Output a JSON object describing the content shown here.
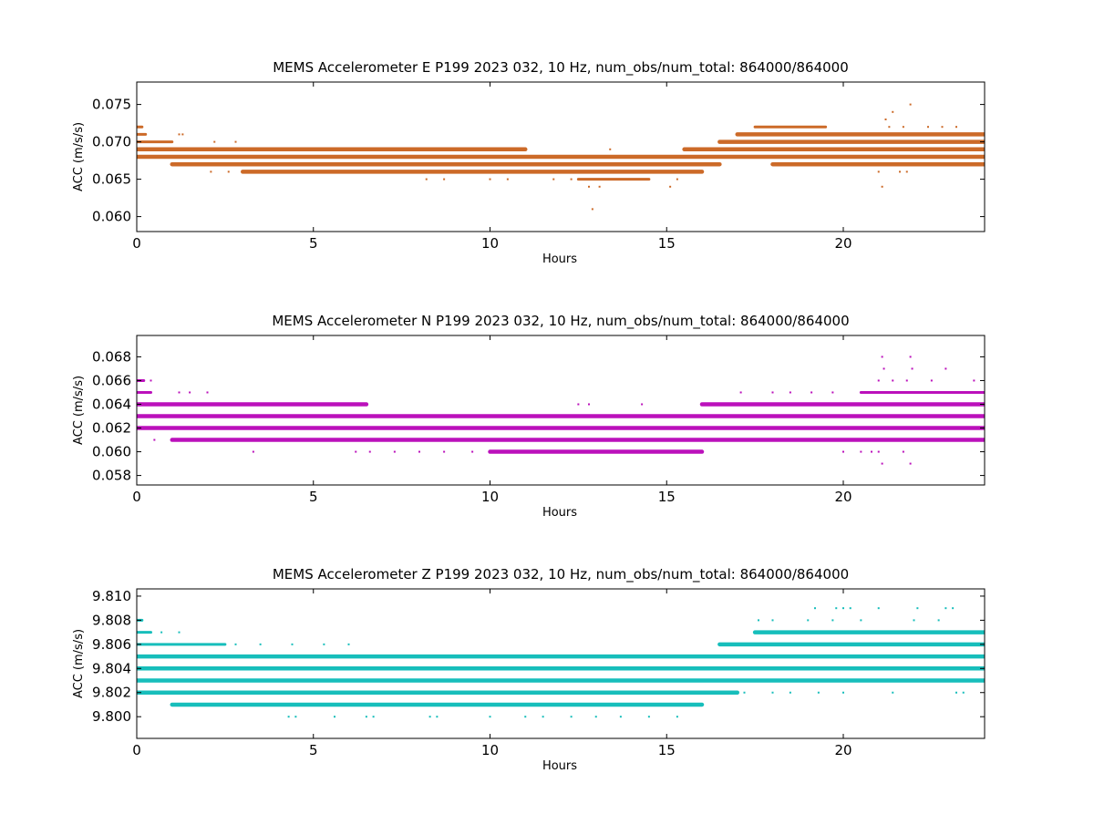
{
  "figure": {
    "background": "#ffffff"
  },
  "chart_data": [
    {
      "type": "scatter",
      "title": "MEMS Accelerometer E P199 2023 032, 10 Hz, num_obs/num_total: 864000/864000",
      "xlabel": "Hours",
      "ylabel": "ACC (m/s/s)",
      "xlim": [
        0,
        24
      ],
      "ylim": [
        0.058,
        0.078
      ],
      "xticks": [
        0,
        5,
        10,
        15,
        20
      ],
      "xtick_labels": [
        "0",
        "5",
        "10",
        "15",
        "20"
      ],
      "yticks": [
        0.06,
        0.065,
        0.07,
        0.075
      ],
      "ytick_labels": [
        "0.060",
        "0.065",
        "0.070",
        "0.075"
      ],
      "grid": false,
      "color": "#cc6a28",
      "bands": [
        {
          "y": 0.072,
          "segments": [
            [
              0.0,
              0.15
            ],
            [
              17.5,
              19.5
            ]
          ]
        },
        {
          "y": 0.071,
          "segments": [
            [
              0.0,
              0.25
            ],
            [
              17.0,
              24.0
            ]
          ]
        },
        {
          "y": 0.07,
          "segments": [
            [
              0.0,
              1.0
            ],
            [
              16.5,
              24.0
            ]
          ]
        },
        {
          "y": 0.069,
          "segments": [
            [
              0.0,
              11.0
            ],
            [
              15.5,
              24.0
            ]
          ]
        },
        {
          "y": 0.068,
          "segments": [
            [
              0.0,
              24.0
            ]
          ]
        },
        {
          "y": 0.067,
          "segments": [
            [
              1.0,
              16.5
            ],
            [
              18.0,
              24.0
            ]
          ]
        },
        {
          "y": 0.066,
          "segments": [
            [
              3.0,
              16.0
            ]
          ]
        },
        {
          "y": 0.065,
          "segments": [
            [
              12.5,
              14.5
            ]
          ]
        }
      ],
      "points": [
        {
          "x": 1.2,
          "y": 0.071
        },
        {
          "x": 1.3,
          "y": 0.071
        },
        {
          "x": 2.2,
          "y": 0.07
        },
        {
          "x": 2.8,
          "y": 0.07
        },
        {
          "x": 2.1,
          "y": 0.066
        },
        {
          "x": 2.6,
          "y": 0.066
        },
        {
          "x": 8.2,
          "y": 0.065
        },
        {
          "x": 8.7,
          "y": 0.065
        },
        {
          "x": 10.0,
          "y": 0.065
        },
        {
          "x": 10.5,
          "y": 0.065
        },
        {
          "x": 11.8,
          "y": 0.065
        },
        {
          "x": 12.3,
          "y": 0.065
        },
        {
          "x": 12.8,
          "y": 0.064
        },
        {
          "x": 12.9,
          "y": 0.061
        },
        {
          "x": 13.1,
          "y": 0.064
        },
        {
          "x": 15.1,
          "y": 0.064
        },
        {
          "x": 13.4,
          "y": 0.069
        },
        {
          "x": 15.3,
          "y": 0.065
        },
        {
          "x": 19.0,
          "y": 0.067
        },
        {
          "x": 20.8,
          "y": 0.067
        },
        {
          "x": 21.0,
          "y": 0.066
        },
        {
          "x": 21.1,
          "y": 0.064
        },
        {
          "x": 21.2,
          "y": 0.073
        },
        {
          "x": 21.4,
          "y": 0.074
        },
        {
          "x": 21.6,
          "y": 0.066
        },
        {
          "x": 21.8,
          "y": 0.066
        },
        {
          "x": 21.9,
          "y": 0.075
        },
        {
          "x": 22.4,
          "y": 0.072
        },
        {
          "x": 22.8,
          "y": 0.072
        },
        {
          "x": 23.2,
          "y": 0.072
        },
        {
          "x": 21.3,
          "y": 0.072
        },
        {
          "x": 21.7,
          "y": 0.072
        }
      ]
    },
    {
      "type": "scatter",
      "title": "MEMS Accelerometer N P199 2023 032, 10 Hz, num_obs/num_total: 864000/864000",
      "xlabel": "Hours",
      "ylabel": "ACC (m/s/s)",
      "xlim": [
        0,
        24
      ],
      "ylim": [
        0.0572,
        0.0698
      ],
      "xticks": [
        0,
        5,
        10,
        15,
        20
      ],
      "xtick_labels": [
        "0",
        "5",
        "10",
        "15",
        "20"
      ],
      "yticks": [
        0.058,
        0.06,
        0.062,
        0.064,
        0.066,
        0.068
      ],
      "ytick_labels": [
        "0.058",
        "0.060",
        "0.062",
        "0.064",
        "0.066",
        "0.068"
      ],
      "grid": false,
      "color": "#bb11bb",
      "bands": [
        {
          "y": 0.066,
          "segments": [
            [
              0.0,
              0.2
            ]
          ]
        },
        {
          "y": 0.065,
          "segments": [
            [
              0.0,
              0.4
            ],
            [
              20.5,
              24.0
            ]
          ]
        },
        {
          "y": 0.064,
          "segments": [
            [
              0.0,
              6.5
            ],
            [
              16.0,
              24.0
            ]
          ]
        },
        {
          "y": 0.063,
          "segments": [
            [
              0.0,
              24.0
            ]
          ]
        },
        {
          "y": 0.062,
          "segments": [
            [
              0.0,
              24.0
            ]
          ]
        },
        {
          "y": 0.061,
          "segments": [
            [
              1.0,
              24.0
            ]
          ]
        },
        {
          "y": 0.06,
          "segments": [
            [
              10.0,
              16.0
            ]
          ]
        }
      ],
      "points": [
        {
          "x": 0.4,
          "y": 0.066
        },
        {
          "x": 0.5,
          "y": 0.061
        },
        {
          "x": 1.2,
          "y": 0.065
        },
        {
          "x": 1.5,
          "y": 0.065
        },
        {
          "x": 2.0,
          "y": 0.065
        },
        {
          "x": 3.3,
          "y": 0.06
        },
        {
          "x": 6.2,
          "y": 0.06
        },
        {
          "x": 6.6,
          "y": 0.06
        },
        {
          "x": 7.3,
          "y": 0.06
        },
        {
          "x": 8.0,
          "y": 0.06
        },
        {
          "x": 8.7,
          "y": 0.06
        },
        {
          "x": 9.5,
          "y": 0.06
        },
        {
          "x": 12.5,
          "y": 0.064
        },
        {
          "x": 12.8,
          "y": 0.064
        },
        {
          "x": 14.3,
          "y": 0.064
        },
        {
          "x": 17.1,
          "y": 0.065
        },
        {
          "x": 18.0,
          "y": 0.065
        },
        {
          "x": 18.5,
          "y": 0.065
        },
        {
          "x": 19.1,
          "y": 0.065
        },
        {
          "x": 19.7,
          "y": 0.065
        },
        {
          "x": 20.0,
          "y": 0.06
        },
        {
          "x": 20.5,
          "y": 0.06
        },
        {
          "x": 20.8,
          "y": 0.06
        },
        {
          "x": 21.0,
          "y": 0.066
        },
        {
          "x": 21.1,
          "y": 0.068
        },
        {
          "x": 21.15,
          "y": 0.067
        },
        {
          "x": 21.4,
          "y": 0.066
        },
        {
          "x": 21.8,
          "y": 0.066
        },
        {
          "x": 21.9,
          "y": 0.068
        },
        {
          "x": 21.95,
          "y": 0.067
        },
        {
          "x": 22.5,
          "y": 0.066
        },
        {
          "x": 22.9,
          "y": 0.067
        },
        {
          "x": 23.7,
          "y": 0.066
        },
        {
          "x": 21.1,
          "y": 0.059
        },
        {
          "x": 21.9,
          "y": 0.059
        },
        {
          "x": 21.0,
          "y": 0.06
        },
        {
          "x": 21.7,
          "y": 0.06
        }
      ]
    },
    {
      "type": "scatter",
      "title": "MEMS Accelerometer Z P199 2023 032, 10 Hz, num_obs/num_total: 864000/864000",
      "xlabel": "Hours",
      "ylabel": "ACC (m/s/s)",
      "xlim": [
        0,
        24
      ],
      "ylim": [
        9.7982,
        9.8106
      ],
      "xticks": [
        0,
        5,
        10,
        15,
        20
      ],
      "xtick_labels": [
        "0",
        "5",
        "10",
        "15",
        "20"
      ],
      "yticks": [
        9.8,
        9.802,
        9.804,
        9.806,
        9.808,
        9.81
      ],
      "ytick_labels": [
        "9.800",
        "9.802",
        "9.804",
        "9.806",
        "9.808",
        "9.810"
      ],
      "grid": false,
      "color": "#17bebb",
      "bands": [
        {
          "y": 9.808,
          "segments": [
            [
              0.0,
              0.15
            ]
          ]
        },
        {
          "y": 9.807,
          "segments": [
            [
              0.0,
              0.4
            ],
            [
              17.5,
              24.0
            ]
          ]
        },
        {
          "y": 9.806,
          "segments": [
            [
              0.0,
              2.5
            ],
            [
              16.5,
              24.0
            ]
          ]
        },
        {
          "y": 9.805,
          "segments": [
            [
              0.0,
              24.0
            ]
          ]
        },
        {
          "y": 9.804,
          "segments": [
            [
              0.0,
              24.0
            ]
          ]
        },
        {
          "y": 9.803,
          "segments": [
            [
              0.0,
              24.0
            ]
          ]
        },
        {
          "y": 9.802,
          "segments": [
            [
              0.0,
              17.0
            ]
          ]
        },
        {
          "y": 9.801,
          "segments": [
            [
              1.0,
              16.0
            ]
          ]
        }
      ],
      "points": [
        {
          "x": 0.7,
          "y": 9.807
        },
        {
          "x": 1.2,
          "y": 9.807
        },
        {
          "x": 4.3,
          "y": 9.8
        },
        {
          "x": 4.5,
          "y": 9.8
        },
        {
          "x": 5.6,
          "y": 9.8
        },
        {
          "x": 6.5,
          "y": 9.8
        },
        {
          "x": 6.7,
          "y": 9.8
        },
        {
          "x": 8.3,
          "y": 9.8
        },
        {
          "x": 8.5,
          "y": 9.8
        },
        {
          "x": 10.0,
          "y": 9.8
        },
        {
          "x": 11.0,
          "y": 9.8
        },
        {
          "x": 11.5,
          "y": 9.8
        },
        {
          "x": 12.3,
          "y": 9.8
        },
        {
          "x": 13.0,
          "y": 9.8
        },
        {
          "x": 13.7,
          "y": 9.8
        },
        {
          "x": 14.5,
          "y": 9.8
        },
        {
          "x": 15.3,
          "y": 9.8
        },
        {
          "x": 17.6,
          "y": 9.808
        },
        {
          "x": 18.0,
          "y": 9.808
        },
        {
          "x": 19.0,
          "y": 9.808
        },
        {
          "x": 19.7,
          "y": 9.808
        },
        {
          "x": 20.5,
          "y": 9.808
        },
        {
          "x": 22.0,
          "y": 9.808
        },
        {
          "x": 22.7,
          "y": 9.808
        },
        {
          "x": 19.2,
          "y": 9.809
        },
        {
          "x": 19.8,
          "y": 9.809
        },
        {
          "x": 20.0,
          "y": 9.809
        },
        {
          "x": 20.2,
          "y": 9.809
        },
        {
          "x": 21.0,
          "y": 9.809
        },
        {
          "x": 22.1,
          "y": 9.809
        },
        {
          "x": 22.9,
          "y": 9.809
        },
        {
          "x": 23.1,
          "y": 9.809
        },
        {
          "x": 17.2,
          "y": 9.802
        },
        {
          "x": 18.0,
          "y": 9.802
        },
        {
          "x": 18.5,
          "y": 9.802
        },
        {
          "x": 19.3,
          "y": 9.802
        },
        {
          "x": 20.0,
          "y": 9.802
        },
        {
          "x": 21.4,
          "y": 9.802
        },
        {
          "x": 23.2,
          "y": 9.802
        },
        {
          "x": 23.4,
          "y": 9.802
        },
        {
          "x": 2.8,
          "y": 9.806
        },
        {
          "x": 3.5,
          "y": 9.806
        },
        {
          "x": 4.4,
          "y": 9.806
        },
        {
          "x": 5.3,
          "y": 9.806
        },
        {
          "x": 6.0,
          "y": 9.806
        }
      ]
    }
  ]
}
